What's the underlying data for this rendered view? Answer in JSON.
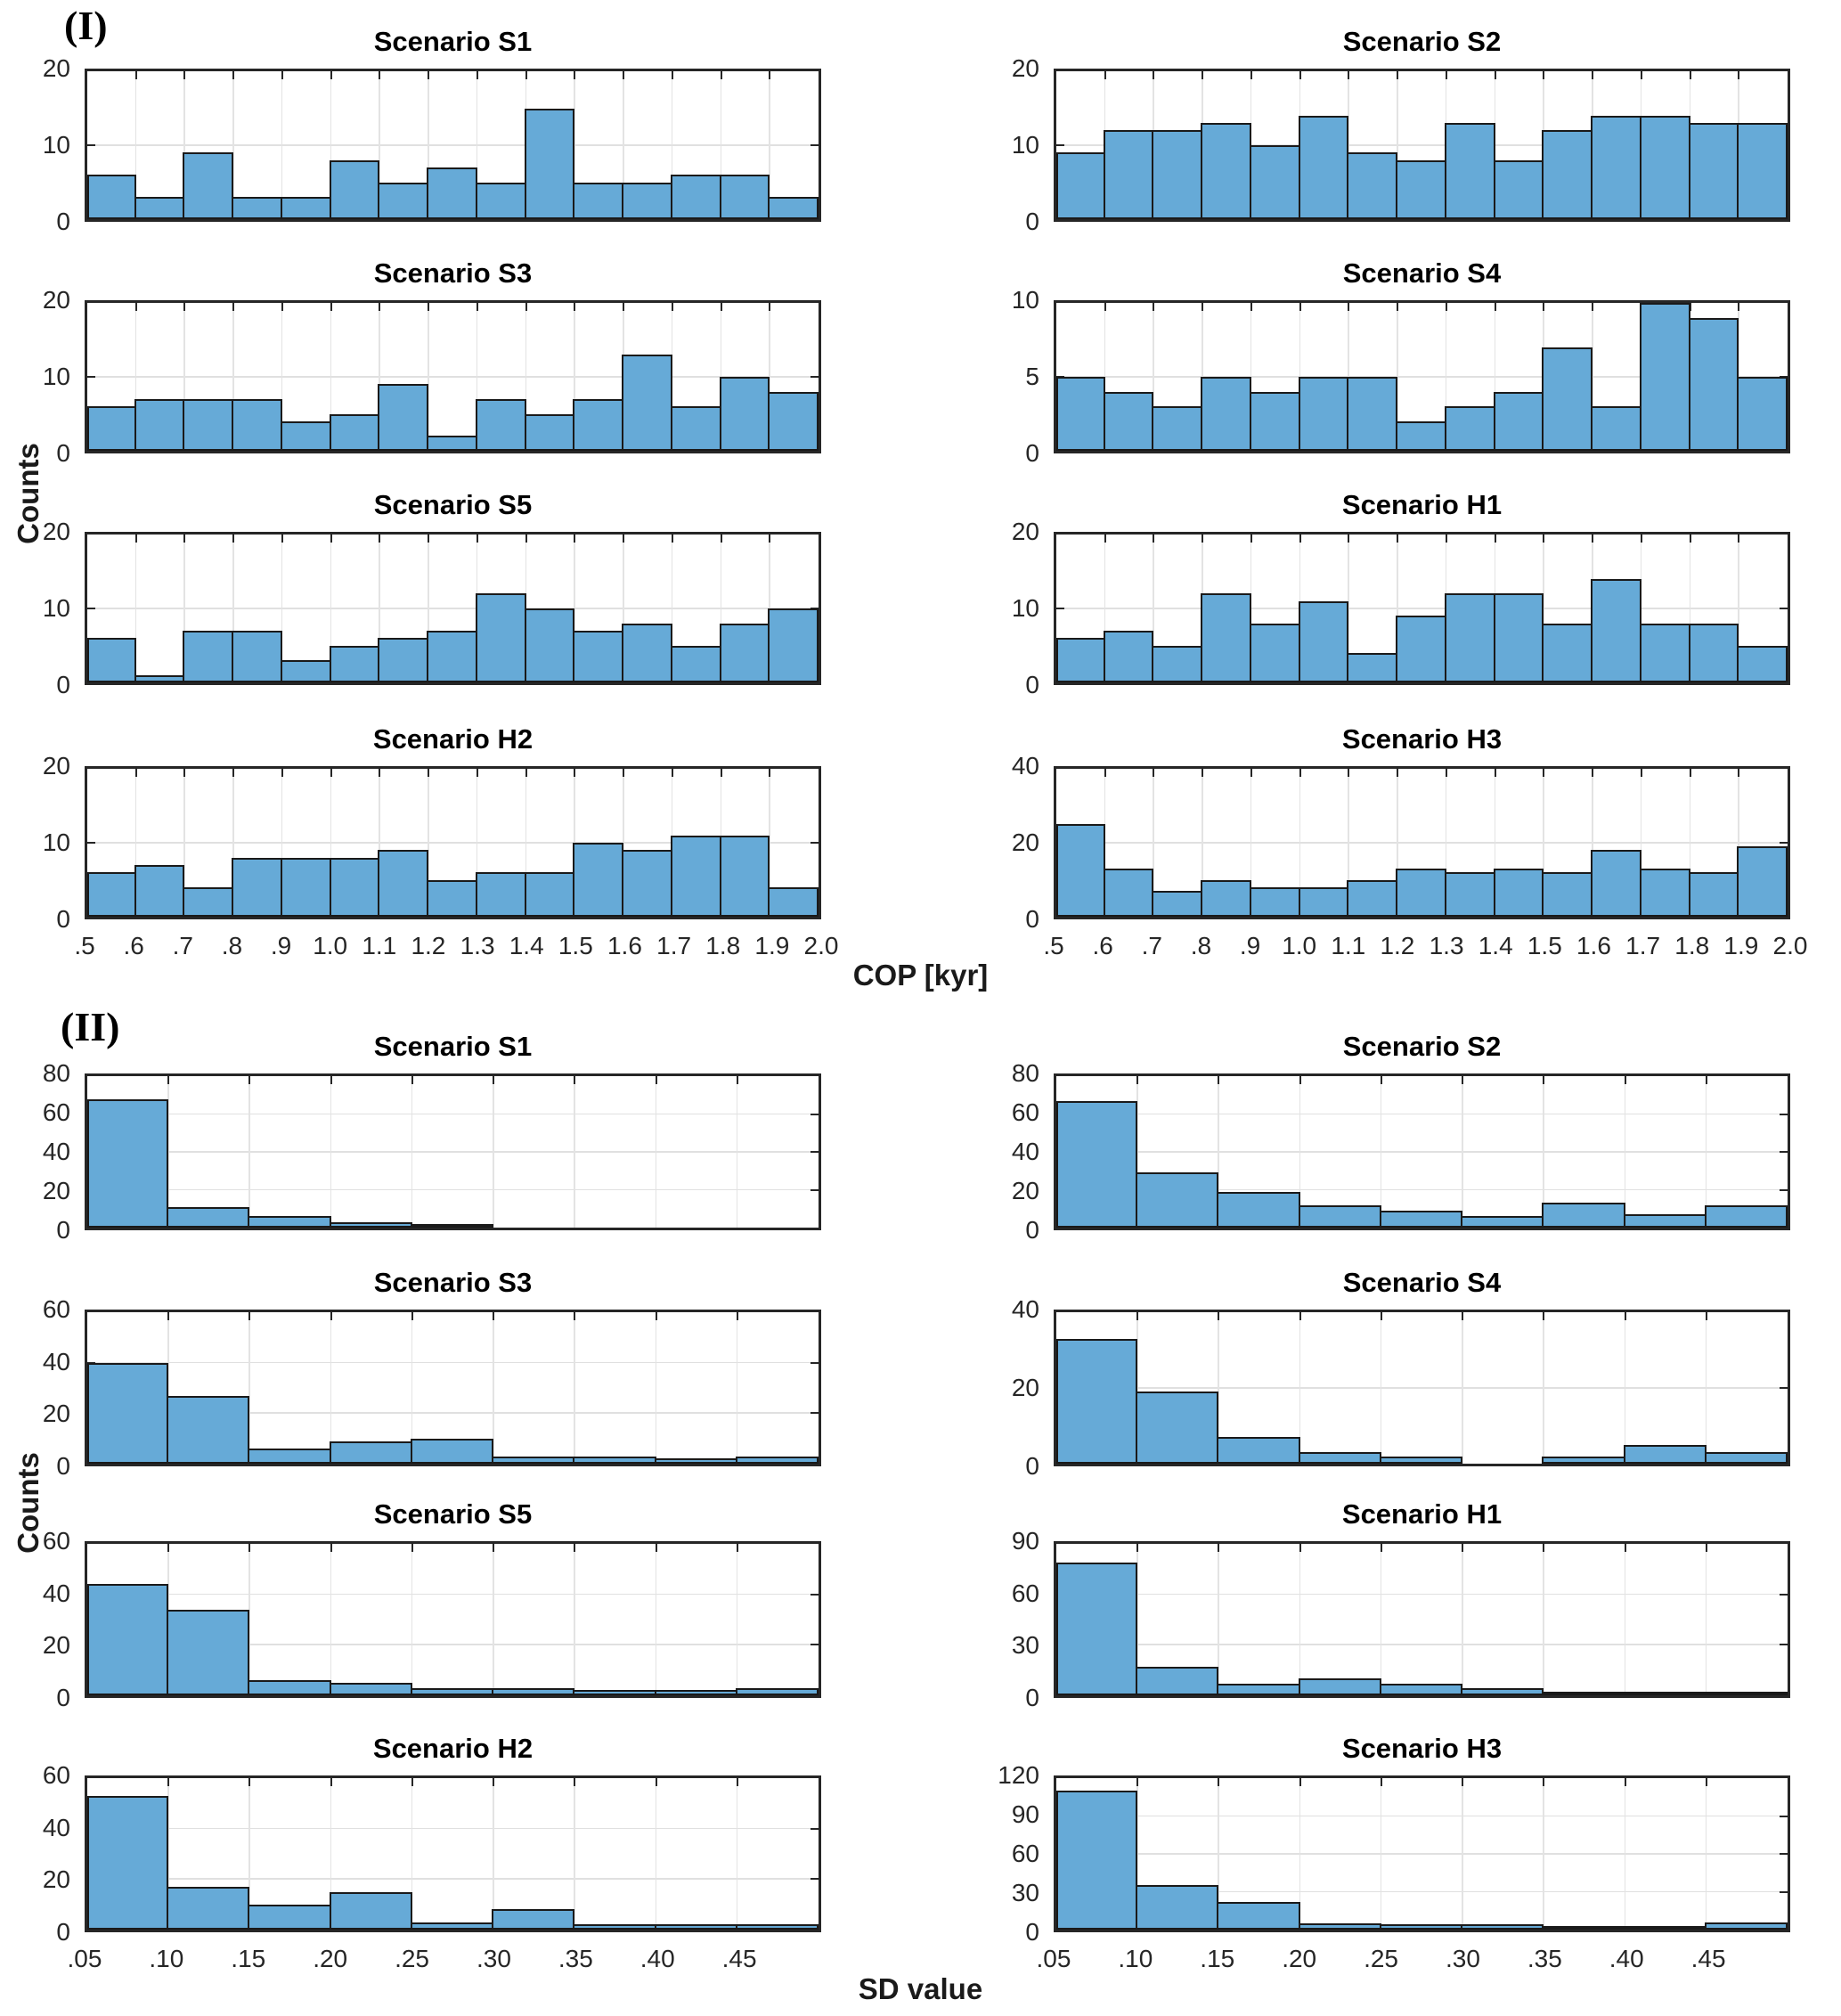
{
  "figure": {
    "panel1_tag": "(I)",
    "panel2_tag": "(II)",
    "panel1_ylabel": "Counts",
    "panel2_ylabel": "Counts",
    "panel1_xlabel": "COP [kyr]",
    "panel2_xlabel": "SD value"
  },
  "colors": {
    "bar_fill": "#66aad7",
    "bar_edge": "#1a1a1a",
    "axis": "#262626",
    "grid": "#e0e0e0",
    "text": "#262626"
  },
  "chart_data": [
    {
      "type": "bar",
      "tag": "(I)",
      "ylabel": "Counts",
      "xlabel": "COP [kyr]",
      "bins": 15,
      "x_range": [
        0.5,
        2.0
      ],
      "bin_width": 0.1,
      "xtick_labels": [
        ".5",
        ".6",
        ".7",
        ".8",
        ".9",
        "1.0",
        "1.1",
        "1.2",
        "1.3",
        "1.4",
        "1.5",
        "1.6",
        "1.7",
        "1.8",
        "1.9",
        "2.0"
      ],
      "grid": true,
      "subplots": [
        {
          "title": "Scenario S1",
          "ymax": 20,
          "yticks": [
            0,
            10,
            20
          ],
          "values": [
            6,
            3,
            9,
            3,
            3,
            8,
            5,
            7,
            5,
            15,
            5,
            5,
            6,
            6,
            3
          ]
        },
        {
          "title": "Scenario S2",
          "ymax": 20,
          "yticks": [
            0,
            10,
            20
          ],
          "values": [
            9,
            12,
            12,
            13,
            10,
            14,
            9,
            8,
            13,
            8,
            12,
            14,
            14,
            13,
            13
          ]
        },
        {
          "title": "Scenario S3",
          "ymax": 20,
          "yticks": [
            0,
            10,
            20
          ],
          "values": [
            6,
            7,
            7,
            7,
            4,
            5,
            9,
            2,
            7,
            5,
            7,
            13,
            6,
            10,
            8
          ]
        },
        {
          "title": "Scenario S4",
          "ymax": 10,
          "yticks": [
            0,
            5,
            10
          ],
          "values": [
            5,
            4,
            3,
            5,
            4,
            5,
            5,
            2,
            3,
            4,
            7,
            3,
            10,
            9,
            5
          ]
        },
        {
          "title": "Scenario S5",
          "ymax": 20,
          "yticks": [
            0,
            10,
            20
          ],
          "values": [
            6,
            1,
            7,
            7,
            3,
            5,
            6,
            7,
            12,
            10,
            7,
            8,
            5,
            8,
            10
          ]
        },
        {
          "title": "Scenario H1",
          "ymax": 20,
          "yticks": [
            0,
            10,
            20
          ],
          "values": [
            6,
            7,
            5,
            12,
            8,
            11,
            4,
            9,
            12,
            12,
            8,
            14,
            8,
            8,
            5
          ]
        },
        {
          "title": "Scenario H2",
          "ymax": 20,
          "yticks": [
            0,
            10,
            20
          ],
          "values": [
            6,
            7,
            4,
            8,
            8,
            8,
            9,
            5,
            6,
            6,
            10,
            9,
            11,
            11,
            4
          ]
        },
        {
          "title": "Scenario H3",
          "ymax": 40,
          "yticks": [
            0,
            20,
            40
          ],
          "values": [
            25,
            13,
            7,
            10,
            8,
            8,
            10,
            13,
            12,
            13,
            12,
            18,
            13,
            12,
            19
          ]
        }
      ]
    },
    {
      "type": "bar",
      "tag": "(II)",
      "ylabel": "Counts",
      "xlabel": "SD value",
      "bins": 9,
      "x_range": [
        0.05,
        0.5
      ],
      "bin_width": 0.05,
      "xtick_labels": [
        ".05",
        ".10",
        ".15",
        ".20",
        ".25",
        ".30",
        ".35",
        ".40",
        ".45"
      ],
      "grid": true,
      "subplots": [
        {
          "title": "Scenario S1",
          "ymax": 80,
          "yticks": [
            0,
            20,
            40,
            60,
            80
          ],
          "values": [
            68,
            11,
            6,
            3,
            1,
            0,
            0,
            0,
            0
          ]
        },
        {
          "title": "Scenario S2",
          "ymax": 80,
          "yticks": [
            0,
            20,
            40,
            60,
            80
          ],
          "values": [
            67,
            29,
            19,
            12,
            9,
            6,
            13,
            7,
            12
          ]
        },
        {
          "title": "Scenario S3",
          "ymax": 60,
          "yticks": [
            0,
            20,
            40,
            60
          ],
          "values": [
            40,
            27,
            6,
            9,
            10,
            3,
            3,
            2,
            3
          ]
        },
        {
          "title": "Scenario S4",
          "ymax": 40,
          "yticks": [
            0,
            20,
            40
          ],
          "values": [
            33,
            19,
            7,
            3,
            2,
            0,
            2,
            5,
            3
          ]
        },
        {
          "title": "Scenario S5",
          "ymax": 60,
          "yticks": [
            0,
            20,
            40,
            60
          ],
          "values": [
            44,
            34,
            6,
            5,
            3,
            3,
            2,
            2,
            3
          ]
        },
        {
          "title": "Scenario H1",
          "ymax": 90,
          "yticks": [
            0,
            30,
            60,
            90
          ],
          "values": [
            79,
            17,
            7,
            10,
            7,
            4,
            1,
            1,
            2
          ]
        },
        {
          "title": "Scenario H2",
          "ymax": 60,
          "yticks": [
            0,
            20,
            40,
            60
          ],
          "values": [
            53,
            17,
            10,
            15,
            3,
            8,
            2,
            2,
            2
          ]
        },
        {
          "title": "Scenario H3",
          "ymax": 120,
          "yticks": [
            0,
            30,
            60,
            90,
            120
          ],
          "values": [
            110,
            35,
            22,
            5,
            4,
            4,
            3,
            2,
            6
          ]
        }
      ]
    }
  ]
}
